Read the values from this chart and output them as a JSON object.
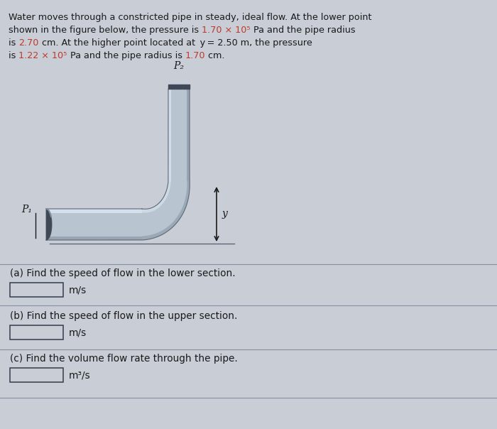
{
  "bg_color": "#c8cdd6",
  "highlight_color": "#c0392b",
  "text_color": "#1a1a1a",
  "part_a": "(a) Find the speed of flow in the lower section.",
  "part_b": "(b) Find the speed of flow in the upper section.",
  "part_c": "(c) Find the volume flow rate through the pipe.",
  "unit_a": "m/s",
  "unit_b": "m/s",
  "unit_c": "m³/s",
  "p1_label": "P₁",
  "p2_label": "P₂",
  "y_label": "y",
  "pipe_mid": "#b8c4d0",
  "pipe_light": "#ccd8e4",
  "pipe_highlight": "#dce8f4",
  "pipe_shadow": "#8090a0",
  "pipe_dark": "#606878",
  "pipe_darkest": "#404858"
}
